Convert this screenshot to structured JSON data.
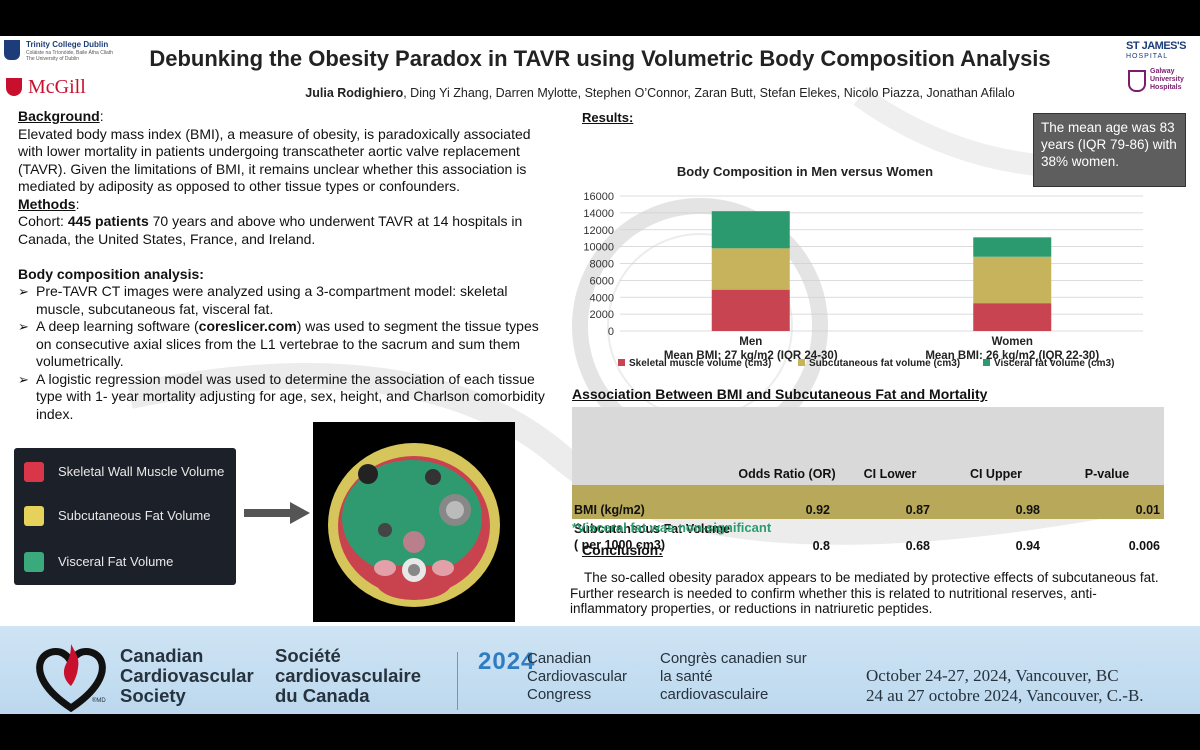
{
  "header": {
    "title": "Debunking the Obesity Paradox in TAVR using Volumetric Body Composition Analysis",
    "authors_lead": "Julia Rodighiero",
    "authors_rest": ", Ding Yi Zhang, Darren Mylotte, Stephen O’Connor, Zaran Butt, Stefan Elekes, Nicolo Piazza, Jonathan Afilalo"
  },
  "logos": {
    "tcd_line1": "Trinity College Dublin",
    "tcd_line2": "Coláiste na Tríonóide, Baile Átha Cliath",
    "tcd_line3": "The University of Dublin",
    "mcgill": "McGill",
    "stjames_line1": "ST JAMES'S",
    "stjames_line2": "HOSPITAL",
    "galway": "Galway University Hospitals"
  },
  "background": {
    "heading": "Background",
    "heading_suffix": ":",
    "text": "Elevated body mass index (BMI), a measure of obesity, is paradoxically associated with lower mortality in patients undergoing transcatheter aortic valve replacement (TAVR). Given the limitations of BMI, it remains unclear whether this association is mediated by adiposity as opposed to other tissue types or confounders."
  },
  "methods": {
    "heading": "Methods",
    "heading_suffix": ":",
    "cohort_label": "Cohort: ",
    "cohort_count": "445 patients",
    "cohort_text": " 70 years and above who underwent TAVR at 14 hospitals in Canada, the United States, France, and Ireland.",
    "bca_heading": "Body composition analysis:",
    "bullet1": "Pre-TAVR CT images were analyzed using a 3-compartment model: skeletal muscle, subcutaneous fat, visceral fat.",
    "bullet2_a": "A deep learning software (",
    "bullet2_link": "coreslicer.com",
    "bullet2_b": ") was used to segment the tissue types on consecutive axial slices from the L1 vertebrae to the sacrum and sum them volumetrically.",
    "bullet3": "A logistic regression model was used to determine the association of each tissue type with 1- year mortality adjusting for age, sex, height, and Charlson comorbidity index."
  },
  "legend": {
    "items": [
      {
        "label": "Skeletal Wall Muscle Volume",
        "color": "#d9364a"
      },
      {
        "label": "Subcutaneous Fat Volume",
        "color": "#e6d25a"
      },
      {
        "label": "Visceral Fat Volume",
        "color": "#3aaa7c"
      }
    ]
  },
  "results": {
    "heading": "Results:",
    "callout": "The mean age was 83 years (IQR 79-86) with 38% women."
  },
  "chart_data": {
    "type": "bar",
    "stacked": true,
    "title": "Body Composition in Men versus Women",
    "categories": [
      "Men",
      "Women"
    ],
    "category_sublabels": [
      "Mean BMI: 27 kg/m2 (IQR 24-30)",
      "Mean BMI: 26 kg/m2 (IQR 22-30)"
    ],
    "series": [
      {
        "name": "Skeletal muscle volume (cm3)",
        "values": [
          4900,
          3300
        ],
        "color": "#c74450"
      },
      {
        "name": "Subcutaneous fat volume (cm3)",
        "values": [
          4900,
          5500
        ],
        "color": "#c7b35c"
      },
      {
        "name": "Visceral fat volume (cm3)",
        "values": [
          4400,
          2300
        ],
        "color": "#2b9a6e"
      }
    ],
    "ylim": [
      0,
      16000
    ],
    "yticks": [
      0,
      2000,
      4000,
      6000,
      8000,
      10000,
      12000,
      14000,
      16000
    ],
    "xlabel": "",
    "ylabel": "",
    "grid": true,
    "legend_position": "bottom"
  },
  "association": {
    "title": "Association Between BMI and Subcutaneous Fat and Mortality",
    "columns": [
      "Odds Ratio (OR)",
      "CI Lower",
      "CI Upper",
      "P-value"
    ],
    "rows": [
      {
        "label": "BMI (kg/m2)",
        "or": "0.92",
        "lower": "0.87",
        "upper": "0.98",
        "p": "0.01"
      },
      {
        "label": "Subcutaneous Fat Volume ( per 1000 cm3)",
        "or": "0.8",
        "lower": "0.68",
        "upper": "0.94",
        "p": "0.006"
      }
    ],
    "note": "*Visceral fat was non-significant"
  },
  "conclusion": {
    "heading": "Conclusion:",
    "text": "The so-called obesity paradox appears to be mediated by protective effects of subcutaneous fat. Further research is needed to confirm whether this is related to nutritional reserves, anti-inflammatory properties, or reductions in natriuretic peptides."
  },
  "footer": {
    "ccs": "Canadian Cardiovascular Society",
    "ccs_mark": "®MD",
    "scc": "Société cardiovasculaire du Canada",
    "year": "2024",
    "ccc": "Canadian Cardiovascular Congress",
    "ccc_fr": "Congrès canadien sur la santé cardiovasculaire",
    "dates_en": "October 24-27, 2024, Vancouver, BC",
    "dates_fr": "24 au 27 octobre 2024, Vancouver, C.-B."
  }
}
